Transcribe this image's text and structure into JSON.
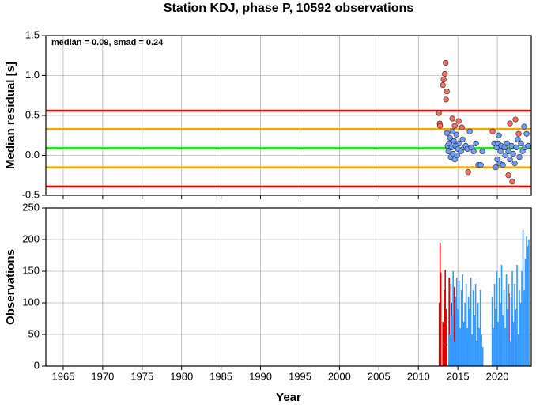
{
  "chart_data": [
    {
      "type": "scatter",
      "title": "Station KDJ, phase P, 10592 observations",
      "annotation": "median = 0.09, smad = 0.24",
      "ylabel": "Median residual [s]",
      "ylim": [
        -0.5,
        1.5
      ],
      "yticks": [
        -0.5,
        {
          "value": 0,
          "label": "0.0"
        },
        0.5,
        {
          "value": 1,
          "label": "1.0"
        },
        1.5
      ],
      "grid": true,
      "hlines": [
        {
          "value": 0.56,
          "color": "#ee0000"
        },
        {
          "value": 0.33,
          "color": "#ffa500"
        },
        {
          "value": 0.09,
          "color": "#00ee00"
        },
        {
          "value": -0.15,
          "color": "#ffa500"
        },
        {
          "value": -0.39,
          "color": "#ee0000"
        }
      ],
      "series": [
        {
          "color": "#ff6b5e",
          "x": [
            2012.6,
            2012.7,
            2012.75,
            2013.1,
            2013.2,
            2013.35,
            2013.45,
            2013.5,
            2013.6,
            2014.3,
            2014.6,
            2015.1,
            2015.5,
            2016.3,
            2019.4,
            2021.4,
            2021.6,
            2021.9,
            2022.3,
            2022.7
          ],
          "values": [
            0.53,
            0.4,
            0.37,
            0.88,
            0.95,
            1.02,
            1.16,
            0.7,
            0.8,
            0.46,
            0.37,
            0.43,
            0.35,
            -0.21,
            0.3,
            -0.25,
            0.4,
            -0.33,
            0.45,
            0.27
          ]
        },
        {
          "color": "#6f9cf6",
          "x": [
            2013.6,
            2013.7,
            2013.8,
            2013.9,
            2014.0,
            2014.1,
            2014.2,
            2014.3,
            2014.4,
            2014.5,
            2014.6,
            2014.7,
            2014.8,
            2014.9,
            2015.0,
            2015.2,
            2015.4,
            2015.6,
            2015.8,
            2016.0,
            2016.2,
            2016.5,
            2016.7,
            2017.0,
            2017.3,
            2017.6,
            2017.9,
            2018.1,
            2019.6,
            2019.8,
            2019.9,
            2020.0,
            2020.1,
            2020.2,
            2020.3,
            2020.4,
            2020.5,
            2020.7,
            2020.9,
            2021.0,
            2021.2,
            2021.4,
            2021.6,
            2021.8,
            2022.0,
            2022.2,
            2022.4,
            2022.6,
            2022.8,
            2023.0,
            2023.2,
            2023.4,
            2023.5,
            2023.7,
            2023.9
          ],
          "values": [
            0.28,
            0.12,
            0.05,
            0.15,
            0.22,
            -0.02,
            0.1,
            0.3,
            0.02,
            0.18,
            -0.05,
            0.12,
            0.26,
            0.0,
            0.08,
            0.15,
            0.05,
            0.2,
            0.1,
            0.12,
            0.08,
            0.3,
            0.1,
            0.05,
            0.15,
            -0.12,
            -0.12,
            0.05,
            0.15,
            -0.15,
            0.1,
            -0.05,
            0.15,
            0.25,
            -0.1,
            0.05,
            0.12,
            -0.12,
            0.1,
            0.0,
            0.15,
            0.05,
            -0.05,
            0.12,
            0.02,
            -0.1,
            0.1,
            0.2,
            -0.02,
            0.15,
            0.05,
            0.36,
            0.1,
            0.27,
            0.12
          ]
        }
      ]
    },
    {
      "type": "bar",
      "ylabel": "Observations",
      "xlabel": "Year",
      "xlim": [
        1962.8,
        2024.3
      ],
      "xticks": [
        1965,
        1970,
        1975,
        1980,
        1985,
        1990,
        1995,
        2000,
        2005,
        2010,
        2015,
        2020
      ],
      "ylim": [
        0,
        250
      ],
      "yticks": [
        0,
        50,
        100,
        150,
        200,
        250
      ],
      "grid": true,
      "series": [
        {
          "color": "#dd0000",
          "x": [
            2012.65,
            2012.75,
            2012.85,
            2013.1,
            2013.2,
            2013.3,
            2013.4,
            2013.5,
            2013.6,
            2013.9,
            2014.2,
            2014.5,
            2014.8,
            2015.0,
            2016.3,
            2020.4,
            2021.5,
            2021.9,
            2022.4
          ],
          "values": [
            100,
            195,
            148,
            70,
            65,
            120,
            152,
            90,
            30,
            140,
            100,
            125,
            60,
            80,
            40,
            40,
            115,
            80,
            40
          ]
        },
        {
          "color": "#3399ff",
          "x": [
            2013.95,
            2014.1,
            2014.25,
            2014.4,
            2014.55,
            2014.7,
            2014.85,
            2015.0,
            2015.15,
            2015.3,
            2015.45,
            2015.6,
            2015.75,
            2015.9,
            2016.05,
            2016.2,
            2016.35,
            2016.5,
            2016.65,
            2016.8,
            2016.95,
            2017.1,
            2017.25,
            2017.4,
            2017.55,
            2017.7,
            2017.85,
            2018.0,
            2018.15,
            2019.35,
            2019.5,
            2019.65,
            2019.8,
            2019.95,
            2020.1,
            2020.25,
            2020.4,
            2020.55,
            2020.7,
            2020.85,
            2021.0,
            2021.15,
            2021.3,
            2021.45,
            2021.6,
            2021.75,
            2021.9,
            2022.05,
            2022.2,
            2022.35,
            2022.5,
            2022.65,
            2022.8,
            2022.95,
            2023.1,
            2023.25,
            2023.4,
            2023.55,
            2023.7,
            2023.85,
            2024.0
          ],
          "values": [
            50,
            130,
            80,
            150,
            40,
            110,
            140,
            90,
            135,
            60,
            120,
            145,
            70,
            100,
            130,
            60,
            110,
            90,
            140,
            50,
            120,
            80,
            130,
            40,
            100,
            60,
            120,
            50,
            30,
            110,
            60,
            130,
            90,
            150,
            70,
            140,
            100,
            160,
            80,
            120,
            60,
            145,
            90,
            130,
            40,
            110,
            150,
            70,
            130,
            90,
            160,
            50,
            120,
            100,
            150,
            215,
            120,
            170,
            205,
            190,
            200
          ]
        }
      ]
    }
  ]
}
